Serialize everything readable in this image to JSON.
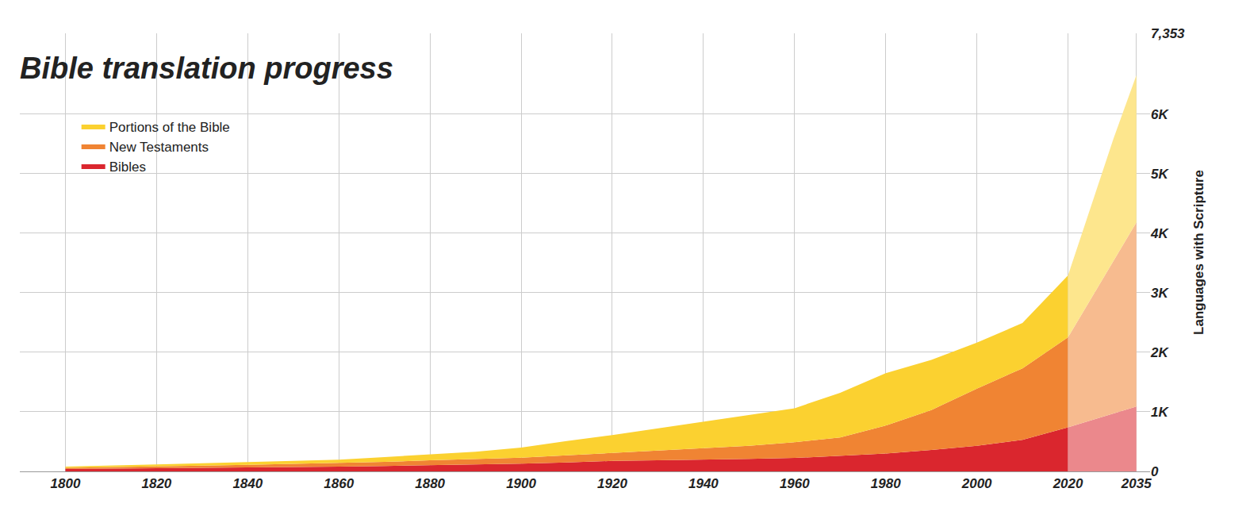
{
  "chart_data": {
    "type": "area",
    "title": "Bible translation progress",
    "y_label": "Languages with Scripture",
    "stacked": true,
    "grid": true,
    "legend": "top left",
    "x": [
      1800,
      1810,
      1820,
      1830,
      1840,
      1850,
      1860,
      1870,
      1880,
      1890,
      1900,
      1910,
      1920,
      1930,
      1940,
      1950,
      1960,
      1970,
      1980,
      1990,
      2000,
      2010,
      2020,
      2030,
      2035
    ],
    "xlim": [
      1790,
      2038
    ],
    "xticks": [
      1800,
      1820,
      1840,
      1860,
      1880,
      1900,
      1920,
      1940,
      1960,
      1980,
      2000,
      2020,
      2035
    ],
    "ylim": [
      0,
      7353
    ],
    "yticks": [
      0,
      {
        "value": 1000,
        "label": "1K"
      },
      {
        "value": 2000,
        "label": "2K"
      },
      {
        "value": 3000,
        "label": "3K"
      },
      {
        "value": 4000,
        "label": "4K"
      },
      {
        "value": 5000,
        "label": "5K"
      },
      {
        "value": 6000,
        "label": "6K"
      },
      {
        "value": 7353,
        "label": "7,353"
      }
    ],
    "series": [
      {
        "name": "Bibles",
        "color": "#da262e",
        "values": [
          40,
          45,
          50,
          58,
          65,
          72,
          80,
          90,
          100,
          115,
          130,
          150,
          175,
          185,
          195,
          210,
          225,
          260,
          300,
          360,
          430,
          530,
          740,
          970,
          1090
        ]
      },
      {
        "name": "New Testaments",
        "color": "#f08433",
        "values": [
          20,
          25,
          30,
          37,
          45,
          53,
          60,
          70,
          85,
          90,
          100,
          120,
          135,
          165,
          195,
          220,
          265,
          310,
          470,
          670,
          960,
          1200,
          1510,
          2570,
          3090
        ]
      },
      {
        "name": "Portions of the Bible",
        "color": "#fbd130",
        "values": [
          20,
          25,
          35,
          40,
          45,
          50,
          55,
          80,
          100,
          125,
          170,
          240,
          300,
          370,
          440,
          510,
          570,
          750,
          880,
          840,
          770,
          760,
          1040,
          2050,
          2470
        ]
      }
    ]
  }
}
